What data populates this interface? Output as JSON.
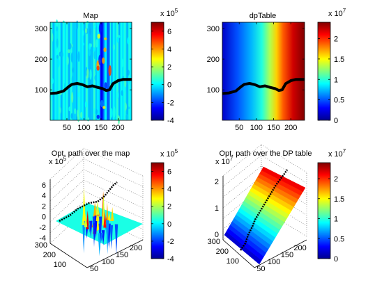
{
  "figure": {
    "background": "#ffffff",
    "axis_color": "#000000",
    "grid_color": "#8c8c8c",
    "path_color": "#000000"
  },
  "chart_data": [
    {
      "type": "heatmap",
      "title": "Map",
      "xlabel": "",
      "ylabel": "",
      "xlim": [
        1,
        240
      ],
      "ylim": [
        1,
        320
      ],
      "x_ticks": [
        50,
        100,
        150,
        200
      ],
      "y_ticks": [
        100,
        200,
        300
      ],
      "colorbar": {
        "ticks": [
          -4,
          -2,
          0,
          2,
          4,
          6
        ],
        "range": [
          -4,
          7
        ],
        "exponent_label": "x 10",
        "exponent": "5"
      },
      "path": {
        "x": [
          0,
          20,
          40,
          55,
          65,
          80,
          95,
          110,
          125,
          140,
          155,
          165,
          175,
          185,
          200,
          215,
          240
        ],
        "y": [
          88,
          90,
          96,
          110,
          118,
          121,
          117,
          110,
          113,
          108,
          104,
          98,
          100,
          120,
          130,
          134,
          134
        ]
      },
      "colormap": "jet"
    },
    {
      "type": "heatmap",
      "title": "dpTable",
      "xlabel": "",
      "ylabel": "",
      "xlim": [
        1,
        240
      ],
      "ylim": [
        1,
        320
      ],
      "x_ticks": [
        50,
        100,
        150,
        200
      ],
      "y_ticks": [
        100,
        200,
        300
      ],
      "colorbar": {
        "ticks": [
          0,
          0.5,
          1,
          1.5,
          2
        ],
        "range": [
          0,
          2.4
        ],
        "exponent_label": "x 10",
        "exponent": "7"
      },
      "path": {
        "x": [
          0,
          20,
          40,
          55,
          65,
          80,
          95,
          110,
          125,
          140,
          155,
          165,
          175,
          185,
          200,
          215,
          240
        ],
        "y": [
          88,
          90,
          96,
          110,
          118,
          121,
          117,
          110,
          113,
          108,
          104,
          98,
          100,
          120,
          130,
          134,
          134
        ]
      },
      "colormap": "jet"
    },
    {
      "type": "surface",
      "title": "Opt. path over the map",
      "z_ticks": [
        -4,
        -2,
        0,
        2,
        4,
        6
      ],
      "y_ticks": [
        100,
        200,
        300
      ],
      "x_ticks": [
        50,
        100,
        150,
        200
      ],
      "z_exponent_label": "x 10",
      "z_exponent": "5",
      "colorbar": {
        "ticks": [
          -4,
          -2,
          0,
          2,
          4,
          6
        ],
        "range": [
          -4,
          7
        ],
        "exponent_label": "x 10",
        "exponent": "5"
      },
      "colormap": "jet"
    },
    {
      "type": "surface",
      "title": "Opt. path over the DP table",
      "z_ticks": [
        0,
        1,
        2
      ],
      "y_ticks": [
        100,
        200,
        300
      ],
      "x_ticks": [
        50,
        100,
        150,
        200
      ],
      "z_exponent_label": "x 10",
      "z_exponent": "7",
      "colorbar": {
        "ticks": [
          0,
          0.5,
          1,
          1.5,
          2
        ],
        "range": [
          0,
          2.4
        ],
        "exponent_label": "x 10",
        "exponent": "7"
      },
      "colormap": "jet"
    }
  ]
}
